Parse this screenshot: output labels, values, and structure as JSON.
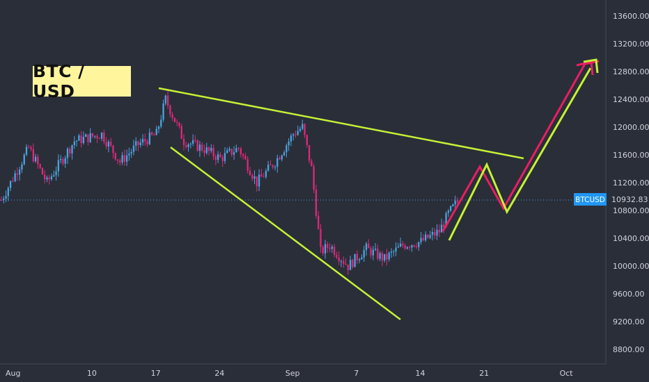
{
  "chart_data": {
    "type": "candlestick",
    "title": "BTC / USD",
    "symbol": "BTCUSD",
    "last_price": "10932.83",
    "y_ticks": [
      "13600.00",
      "13200.00",
      "12800.00",
      "12400.00",
      "12000.00",
      "11600.00",
      "11200.00",
      "10800.00",
      "10400.00",
      "10000.00",
      "9600.00",
      "9200.00",
      "8800.00"
    ],
    "x_ticks": [
      "Aug",
      "10",
      "17",
      "24",
      "Sep",
      "7",
      "14",
      "21",
      "Oct"
    ],
    "ylim": [
      8600,
      13800
    ],
    "series_close_path": [
      {
        "day": 0,
        "price": 10950
      },
      {
        "day": 3,
        "price": 11700
      },
      {
        "day": 5,
        "price": 11200
      },
      {
        "day": 8,
        "price": 11800
      },
      {
        "day": 11,
        "price": 11900
      },
      {
        "day": 13,
        "price": 11500
      },
      {
        "day": 15,
        "price": 11750
      },
      {
        "day": 17,
        "price": 11900
      },
      {
        "day": 18,
        "price": 12400
      },
      {
        "day": 20,
        "price": 11800
      },
      {
        "day": 22,
        "price": 11700
      },
      {
        "day": 24,
        "price": 11550
      },
      {
        "day": 26,
        "price": 11700
      },
      {
        "day": 28,
        "price": 11200
      },
      {
        "day": 30,
        "price": 11500
      },
      {
        "day": 32,
        "price": 11900
      },
      {
        "day": 33,
        "price": 12000
      },
      {
        "day": 34,
        "price": 11400
      },
      {
        "day": 35,
        "price": 10200
      },
      {
        "day": 36,
        "price": 10300
      },
      {
        "day": 38,
        "price": 10000
      },
      {
        "day": 40,
        "price": 10250
      },
      {
        "day": 42,
        "price": 10100
      },
      {
        "day": 44,
        "price": 10300
      },
      {
        "day": 46,
        "price": 10350
      },
      {
        "day": 48,
        "price": 10500
      },
      {
        "day": 49,
        "price": 10750
      },
      {
        "day": 50,
        "price": 10930
      }
    ],
    "annotations": {
      "upper_trendline": "yellow",
      "lower_trendline": "yellow",
      "forecast_zigzag_colors": [
        "#e91e63",
        "#c6f135"
      ]
    },
    "colors": {
      "background": "#2a2e39",
      "up_candle": "#4aa3df",
      "down_candle": "#e0287c",
      "trendline": "#c6f135",
      "forecast_magenta": "#e91e63",
      "price_tag": "#2196f3",
      "title_bg": "#fff59d"
    }
  }
}
